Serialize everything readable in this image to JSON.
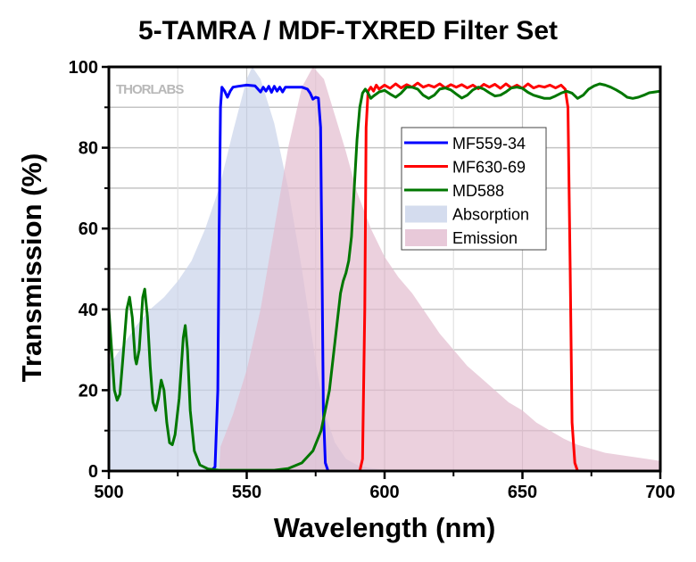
{
  "chart_data": {
    "type": "line",
    "title": "5-TAMRA / MDF-TXRED Filter Set",
    "xlabel": "Wavelength (nm)",
    "ylabel": "Transmission (%)",
    "xlim": [
      500,
      700
    ],
    "ylim": [
      0,
      100
    ],
    "xticks": [
      500,
      550,
      600,
      650,
      700
    ],
    "yticks": [
      0,
      20,
      40,
      60,
      80,
      100
    ],
    "grid": true,
    "legend_position": "upper-center-right",
    "watermark": "THORLABS",
    "series": [
      {
        "name": "Absorption",
        "kind": "area",
        "color": "#c9d3ea",
        "points": [
          [
            500,
            26
          ],
          [
            505,
            31
          ],
          [
            510,
            36
          ],
          [
            515,
            40
          ],
          [
            520,
            43
          ],
          [
            525,
            47
          ],
          [
            530,
            52
          ],
          [
            535,
            60
          ],
          [
            540,
            70
          ],
          [
            545,
            84
          ],
          [
            550,
            97
          ],
          [
            552,
            100
          ],
          [
            555,
            97
          ],
          [
            560,
            86
          ],
          [
            565,
            70
          ],
          [
            570,
            50
          ],
          [
            575,
            27
          ],
          [
            578,
            15
          ],
          [
            582,
            7
          ],
          [
            586,
            3
          ],
          [
            590,
            1.5
          ],
          [
            595,
            0.7
          ],
          [
            600,
            0.3
          ],
          [
            605,
            0
          ]
        ]
      },
      {
        "name": "Emission",
        "kind": "area",
        "color": "#e2bccf",
        "points": [
          [
            540,
            0
          ],
          [
            540.5,
            6
          ],
          [
            545,
            14
          ],
          [
            550,
            25
          ],
          [
            555,
            40
          ],
          [
            560,
            60
          ],
          [
            565,
            80
          ],
          [
            570,
            95
          ],
          [
            574,
            100
          ],
          [
            578,
            97
          ],
          [
            582,
            88
          ],
          [
            586,
            79
          ],
          [
            590,
            69
          ],
          [
            595,
            60
          ],
          [
            600,
            53
          ],
          [
            605,
            48
          ],
          [
            610,
            44
          ],
          [
            615,
            39
          ],
          [
            620,
            34
          ],
          [
            625,
            30
          ],
          [
            630,
            26
          ],
          [
            635,
            23
          ],
          [
            640,
            20
          ],
          [
            645,
            17
          ],
          [
            650,
            15
          ],
          [
            655,
            12
          ],
          [
            660,
            10
          ],
          [
            665,
            8
          ],
          [
            670,
            6.5
          ],
          [
            675,
            5.5
          ],
          [
            680,
            4.5
          ],
          [
            685,
            4
          ],
          [
            690,
            3.5
          ],
          [
            695,
            3
          ],
          [
            700,
            2.5
          ]
        ]
      },
      {
        "name": "MF559-34",
        "kind": "line",
        "color": "#0000ff",
        "points": [
          [
            500,
            0
          ],
          [
            537,
            0
          ],
          [
            538.5,
            1
          ],
          [
            539.5,
            20
          ],
          [
            540,
            60
          ],
          [
            540.5,
            90
          ],
          [
            541,
            95
          ],
          [
            542,
            94
          ],
          [
            543,
            92.5
          ],
          [
            544,
            94
          ],
          [
            545,
            95
          ],
          [
            547,
            95.2
          ],
          [
            550,
            95.5
          ],
          [
            553,
            95.3
          ],
          [
            555,
            93.8
          ],
          [
            556,
            95
          ],
          [
            557,
            94
          ],
          [
            558,
            95.2
          ],
          [
            559,
            93.7
          ],
          [
            560,
            95.2
          ],
          [
            561,
            94
          ],
          [
            562,
            95
          ],
          [
            563,
            93.8
          ],
          [
            564,
            95
          ],
          [
            567,
            95
          ],
          [
            570,
            95
          ],
          [
            572,
            94.5
          ],
          [
            573,
            93.5
          ],
          [
            574,
            92
          ],
          [
            575,
            92.5
          ],
          [
            576,
            92.3
          ],
          [
            576.8,
            85
          ],
          [
            577.3,
            50
          ],
          [
            577.8,
            15
          ],
          [
            578.5,
            2
          ],
          [
            579.5,
            0
          ],
          [
            700,
            0
          ]
        ]
      },
      {
        "name": "MF630-69",
        "kind": "line",
        "color": "#ff0000",
        "points": [
          [
            500,
            0
          ],
          [
            591,
            0
          ],
          [
            592,
            3
          ],
          [
            592.8,
            40
          ],
          [
            593.3,
            85
          ],
          [
            594,
            94
          ],
          [
            595,
            95
          ],
          [
            596,
            94
          ],
          [
            597,
            95.5
          ],
          [
            598,
            94.5
          ],
          [
            600,
            95.5
          ],
          [
            602,
            94.7
          ],
          [
            604,
            95.8
          ],
          [
            606,
            94.8
          ],
          [
            608,
            95.6
          ],
          [
            610,
            95
          ],
          [
            612,
            96
          ],
          [
            614,
            95
          ],
          [
            616,
            95.5
          ],
          [
            618,
            95
          ],
          [
            620,
            95.8
          ],
          [
            622,
            94.8
          ],
          [
            624,
            95.6
          ],
          [
            626,
            95
          ],
          [
            628,
            95.6
          ],
          [
            630,
            94.8
          ],
          [
            632,
            95.5
          ],
          [
            634,
            94.6
          ],
          [
            636,
            95.7
          ],
          [
            638,
            95
          ],
          [
            640,
            95.7
          ],
          [
            642,
            94.7
          ],
          [
            644,
            95.8
          ],
          [
            646,
            94.8
          ],
          [
            648,
            95.5
          ],
          [
            650,
            94.7
          ],
          [
            652,
            95.8
          ],
          [
            654,
            94.8
          ],
          [
            656,
            95.3
          ],
          [
            658,
            95
          ],
          [
            660,
            95.5
          ],
          [
            662,
            94.8
          ],
          [
            664,
            95.5
          ],
          [
            665.5,
            94.5
          ],
          [
            666.5,
            90
          ],
          [
            667.3,
            50
          ],
          [
            668,
            12
          ],
          [
            669,
            2
          ],
          [
            670,
            0
          ],
          [
            700,
            0
          ]
        ]
      },
      {
        "name": "MD588",
        "kind": "line",
        "color": "#007700",
        "points": [
          [
            500,
            40
          ],
          [
            501,
            30
          ],
          [
            502,
            20
          ],
          [
            503,
            17.5
          ],
          [
            504,
            19
          ],
          [
            505,
            27
          ],
          [
            506.5,
            40
          ],
          [
            507.5,
            43
          ],
          [
            508.5,
            38
          ],
          [
            509.5,
            28
          ],
          [
            510,
            26.5
          ],
          [
            511,
            30
          ],
          [
            512.3,
            43
          ],
          [
            513,
            45
          ],
          [
            514,
            38
          ],
          [
            515,
            26
          ],
          [
            516,
            17
          ],
          [
            517,
            15
          ],
          [
            518,
            18
          ],
          [
            519,
            22.5
          ],
          [
            520,
            20
          ],
          [
            521,
            12
          ],
          [
            522,
            7
          ],
          [
            523,
            6.5
          ],
          [
            524,
            9
          ],
          [
            525.5,
            18
          ],
          [
            527,
            33
          ],
          [
            527.7,
            36
          ],
          [
            528.5,
            30
          ],
          [
            529.5,
            15
          ],
          [
            531,
            5
          ],
          [
            533,
            1.5
          ],
          [
            536,
            0.5
          ],
          [
            540,
            0.2
          ],
          [
            560,
            0.2
          ],
          [
            565,
            0.6
          ],
          [
            570,
            2
          ],
          [
            574,
            5
          ],
          [
            577,
            10
          ],
          [
            580,
            20
          ],
          [
            582,
            32
          ],
          [
            584,
            44
          ],
          [
            585,
            47
          ],
          [
            586,
            49
          ],
          [
            587,
            52
          ],
          [
            588,
            58
          ],
          [
            589,
            70
          ],
          [
            590,
            82
          ],
          [
            591,
            90
          ],
          [
            592,
            93.5
          ],
          [
            593,
            94.5
          ],
          [
            594,
            93.5
          ],
          [
            595,
            92.2
          ],
          [
            596,
            92.8
          ],
          [
            598,
            93.8
          ],
          [
            600,
            94.2
          ],
          [
            602,
            93.3
          ],
          [
            604,
            92.5
          ],
          [
            606,
            93.5
          ],
          [
            608,
            95
          ],
          [
            610,
            95
          ],
          [
            612,
            94.5
          ],
          [
            614,
            93
          ],
          [
            616,
            92.2
          ],
          [
            618,
            93
          ],
          [
            620,
            94.5
          ],
          [
            622,
            94.8
          ],
          [
            624,
            94.3
          ],
          [
            626,
            93.3
          ],
          [
            628,
            92.3
          ],
          [
            630,
            93
          ],
          [
            632,
            94.3
          ],
          [
            634,
            95
          ],
          [
            636,
            94.5
          ],
          [
            638,
            93.6
          ],
          [
            640,
            92.8
          ],
          [
            642,
            93
          ],
          [
            644,
            93.8
          ],
          [
            646,
            94.8
          ],
          [
            648,
            95
          ],
          [
            650,
            94.7
          ],
          [
            652,
            93.7
          ],
          [
            654,
            93
          ],
          [
            656,
            92.6
          ],
          [
            658,
            92.2
          ],
          [
            660,
            92.2
          ],
          [
            662,
            92.8
          ],
          [
            664,
            93.5
          ],
          [
            666,
            94
          ],
          [
            668,
            93.5
          ],
          [
            670,
            92.2
          ],
          [
            672,
            93
          ],
          [
            674,
            94.5
          ],
          [
            676,
            95.3
          ],
          [
            678,
            95.8
          ],
          [
            680,
            95.5
          ],
          [
            682,
            95
          ],
          [
            684,
            94.3
          ],
          [
            686,
            93.5
          ],
          [
            688,
            92.5
          ],
          [
            690,
            92.2
          ],
          [
            692,
            92.5
          ],
          [
            694,
            93
          ],
          [
            696,
            93.6
          ],
          [
            698,
            93.8
          ],
          [
            700,
            94
          ]
        ]
      }
    ],
    "legend_order": [
      "MF559-34",
      "MF630-69",
      "MD588",
      "Absorption",
      "Emission"
    ]
  }
}
